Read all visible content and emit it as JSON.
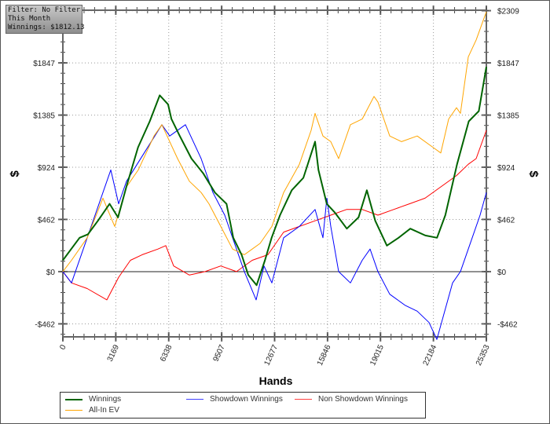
{
  "filter_box": {
    "line1": "Filter: No Filter",
    "line2": "This Month",
    "line3": "Winnings: $1812.13"
  },
  "chart_data": {
    "type": "line",
    "xlabel": "Hands",
    "ylabel": "$",
    "xlim": [
      0,
      25353
    ],
    "ylim": [
      -577,
      2313
    ],
    "x_ticks": [
      0,
      3169,
      6338,
      9507,
      12677,
      15846,
      19015,
      22184,
      25353
    ],
    "y_ticks": [
      -462,
      0,
      462,
      924,
      1385,
      1847,
      2309
    ],
    "y_tick_labels": [
      "-$462",
      "$0",
      "$462",
      "$924",
      "$1385",
      "$1847",
      "$2309"
    ],
    "grid": true,
    "legend": "bottom",
    "series": [
      {
        "name": "Winnings",
        "color": "#006400",
        "x": [
          0,
          500,
          1000,
          1500,
          2100,
          2800,
          3300,
          3800,
          4500,
          5200,
          5800,
          6300,
          6500,
          7000,
          7700,
          8400,
          9100,
          9800,
          10200,
          10700,
          11100,
          11600,
          12100,
          12500,
          13000,
          13700,
          14400,
          15100,
          15300,
          15800,
          16300,
          17000,
          17700,
          18200,
          18700,
          19400,
          20100,
          20800,
          21700,
          22400,
          22900,
          23600,
          24300,
          24900,
          25353
        ],
        "y": [
          100,
          200,
          300,
          330,
          450,
          600,
          480,
          750,
          1100,
          1330,
          1560,
          1480,
          1350,
          1200,
          1000,
          870,
          700,
          600,
          300,
          150,
          -30,
          -120,
          100,
          300,
          500,
          720,
          830,
          1150,
          900,
          600,
          520,
          380,
          480,
          720,
          450,
          230,
          300,
          380,
          320,
          300,
          500,
          950,
          1330,
          1420,
          1812
        ]
      },
      {
        "name": "Showdown Winnings",
        "color": "#0000ff",
        "x": [
          0,
          517,
          1458,
          2869,
          3340,
          3810,
          5927,
          6397,
          7338,
          8279,
          8985,
          9690,
          10396,
          10866,
          11572,
          12042,
          12513,
          13218,
          14159,
          15100,
          15570,
          15805,
          16041,
          16511,
          17217,
          17922,
          18393,
          18863,
          19569,
          20510,
          21215,
          21921,
          22391,
          22861,
          23332,
          23802,
          24508,
          24978,
          25353
        ],
        "y": [
          0,
          -100,
          300,
          900,
          600,
          800,
          1300,
          1200,
          1300,
          1000,
          700,
          500,
          200,
          0,
          -250,
          50,
          -100,
          300,
          400,
          550,
          300,
          650,
          400,
          0,
          -100,
          100,
          200,
          0,
          -200,
          -300,
          -350,
          -450,
          -600,
          -350,
          -100,
          0,
          300,
          500,
          700
        ]
      },
      {
        "name": "Non Showdown Winnings",
        "color": "#ff0000",
        "x": [
          0,
          517,
          1458,
          2634,
          3340,
          4045,
          4751,
          5692,
          6162,
          6633,
          7573,
          8514,
          9455,
          10396,
          11337,
          12277,
          13218,
          14159,
          15100,
          16041,
          16981,
          17922,
          18863,
          19804,
          20745,
          21686,
          22626,
          23567,
          24272,
          24743,
          25353
        ],
        "y": [
          0,
          -100,
          -150,
          -250,
          -50,
          100,
          150,
          200,
          230,
          50,
          -30,
          0,
          50,
          0,
          100,
          150,
          350,
          400,
          450,
          500,
          550,
          550,
          500,
          550,
          600,
          650,
          750,
          850,
          950,
          1000,
          1250
        ]
      },
      {
        "name": "All-In EV",
        "color": "#ffa500",
        "x": [
          0,
          517,
          1458,
          2399,
          3105,
          3810,
          4516,
          5457,
          5927,
          6397,
          6868,
          7573,
          8279,
          8749,
          9455,
          10161,
          10866,
          11337,
          11807,
          12513,
          13218,
          14159,
          14865,
          15100,
          15570,
          16041,
          16511,
          17217,
          17922,
          18628,
          18863,
          19569,
          20274,
          21215,
          22156,
          22626,
          23097,
          23567,
          23802,
          24272,
          24743,
          25353
        ],
        "y": [
          0,
          100,
          300,
          650,
          400,
          750,
          900,
          1200,
          1300,
          1150,
          1000,
          800,
          700,
          600,
          400,
          200,
          150,
          200,
          250,
          400,
          700,
          950,
          1250,
          1400,
          1200,
          1150,
          1000,
          1300,
          1350,
          1550,
          1500,
          1200,
          1150,
          1200,
          1100,
          1050,
          1350,
          1450,
          1400,
          1900,
          2050,
          2300
        ]
      }
    ]
  }
}
